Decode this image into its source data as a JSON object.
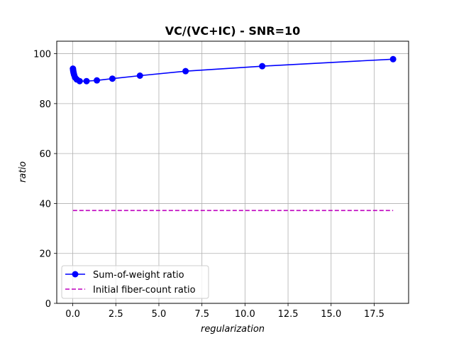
{
  "chart_data": {
    "type": "line",
    "title": "VC/(VC+IC) - SNR=10",
    "xlabel": "regularization",
    "ylabel": "ratio",
    "xlim": [
      -0.93,
      19.5
    ],
    "ylim": [
      0,
      105
    ],
    "x_ticks": [
      0.0,
      2.5,
      5.0,
      7.5,
      10.0,
      12.5,
      15.0,
      17.5
    ],
    "y_ticks": [
      0,
      20,
      40,
      60,
      80,
      100
    ],
    "grid": true,
    "legend_position": "lower-left",
    "series": [
      {
        "name": "Sum-of-weight ratio",
        "style": "solid-line-with-circle-markers",
        "color": "#0000ff",
        "x": [
          0.01,
          0.02,
          0.03,
          0.05,
          0.08,
          0.13,
          0.23,
          0.4,
          0.8,
          1.4,
          2.3,
          3.9,
          6.55,
          11.0,
          18.6
        ],
        "y": [
          94.0,
          93.5,
          93.0,
          92.3,
          91.5,
          90.5,
          89.7,
          89.0,
          89.0,
          89.3,
          90.0,
          91.2,
          93.0,
          95.0,
          97.8
        ]
      },
      {
        "name": "Initial fiber-count ratio",
        "style": "dashed-line",
        "color": "#bf00bf",
        "x": [
          0.01,
          18.6
        ],
        "y": [
          37.2,
          37.2
        ]
      }
    ]
  }
}
